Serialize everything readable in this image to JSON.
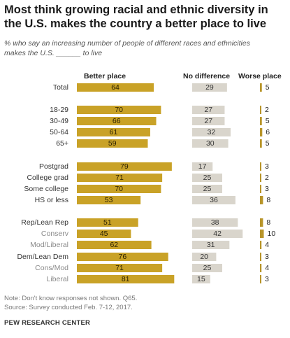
{
  "title": "Most think growing racial and ethnic diversity in the U.S. makes the country a better place to live",
  "subtitle_line1": "% who say an increasing number of people of different races and ethnicities",
  "subtitle_line2": "makes the U.S. ______ to live",
  "note": "Note: Don't know responses not shown. Q65.",
  "source": "Source: Survey conducted Feb. 7-12, 2017.",
  "brand": "PEW RESEARCH CENTER",
  "colors": {
    "better": "#c9a227",
    "no_difference": "#d9d5cc",
    "worse": "#b8952a"
  },
  "chart_data": {
    "type": "bar",
    "orientation": "horizontal",
    "series": [
      {
        "name": "Better place",
        "values": [
          64,
          70,
          66,
          61,
          59,
          79,
          71,
          70,
          53,
          51,
          45,
          62,
          76,
          71,
          81
        ]
      },
      {
        "name": "No difference",
        "values": [
          29,
          27,
          27,
          32,
          30,
          17,
          25,
          25,
          36,
          38,
          42,
          31,
          20,
          25,
          15
        ]
      },
      {
        "name": "Worse place",
        "values": [
          5,
          2,
          5,
          6,
          5,
          3,
          2,
          3,
          8,
          8,
          10,
          4,
          3,
          4,
          3
        ]
      }
    ],
    "categories": [
      "Total",
      "18-29",
      "30-49",
      "50-64",
      "65+",
      "Postgrad",
      "College grad",
      "Some college",
      "HS or less",
      "Rep/Lean Rep",
      "Conserv",
      "Mod/Liberal",
      "Dem/Lean Dem",
      "Cons/Mod",
      "Liberal"
    ],
    "sub_categories": [
      "Conserv",
      "Mod/Liberal",
      "Cons/Mod",
      "Liberal"
    ],
    "groups": [
      [
        0
      ],
      [
        1,
        2,
        3,
        4
      ],
      [
        5,
        6,
        7,
        8
      ],
      [
        9,
        10,
        11,
        12,
        13,
        14
      ]
    ],
    "xlim": [
      0,
      100
    ],
    "grid": false,
    "legend": "column headers"
  }
}
